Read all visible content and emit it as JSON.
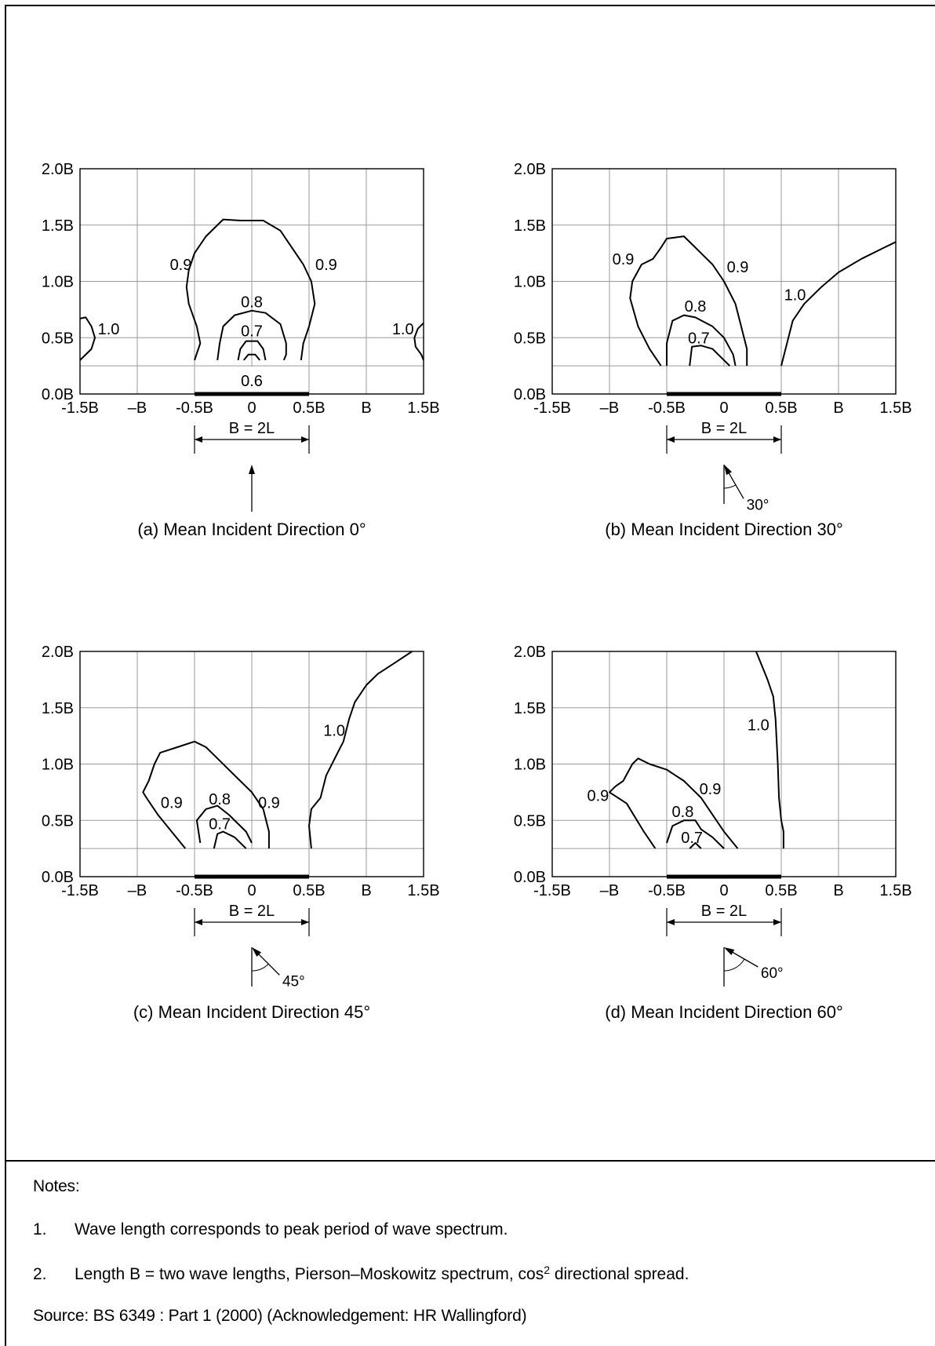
{
  "notes": {
    "heading": "Notes:",
    "items": [
      {
        "num": "1.",
        "text": "Wave length corresponds to peak period of wave spectrum."
      },
      {
        "num": "2.",
        "text_before": "Length B = two wave lengths, Pierson–Moskowitz spectrum, cos",
        "sup": "2",
        "text_after": " directional spread."
      }
    ],
    "source": "Source: BS 6349 : Part 1 (2000) (Acknowledgement: HR Wallingford)"
  },
  "chart_data": [
    {
      "type": "line",
      "title": "(a) Mean Incident Direction 0°",
      "x_tick_labels": [
        "-1.5B",
        "–B",
        "-0.5B",
        "0",
        "0.5B",
        "B",
        "1.5B"
      ],
      "y_tick_labels": [
        "0.0B",
        "0.5B",
        "1.0B",
        "1.5B",
        "2.0B"
      ],
      "xlim": [
        -1.5,
        1.5
      ],
      "ylim": [
        0,
        2.0
      ],
      "grid": true,
      "gap_label": "B = 2L",
      "direction_deg": 0,
      "series": [
        {
          "name": "0.9",
          "x": [
            -0.5,
            -0.45,
            -0.48,
            -0.55,
            -0.57,
            -0.55,
            -0.5,
            -0.4,
            -0.25,
            -0.1,
            0.1,
            0.25,
            0.35,
            0.45,
            0.52,
            0.55,
            0.5,
            0.45,
            0.43
          ],
          "y": [
            0.3,
            0.45,
            0.6,
            0.8,
            0.95,
            1.1,
            1.25,
            1.4,
            1.55,
            1.54,
            1.54,
            1.45,
            1.3,
            1.15,
            1.0,
            0.8,
            0.6,
            0.45,
            0.3
          ]
        },
        {
          "name": "0.8",
          "x": [
            -0.3,
            -0.28,
            -0.25,
            -0.15,
            0.0,
            0.12,
            0.25,
            0.3,
            0.3,
            0.28
          ],
          "y": [
            0.3,
            0.45,
            0.6,
            0.7,
            0.74,
            0.72,
            0.62,
            0.45,
            0.35,
            0.3
          ]
        },
        {
          "name": "0.7",
          "x": [
            -0.12,
            -0.1,
            -0.05,
            0.05,
            0.1,
            0.12
          ],
          "y": [
            0.3,
            0.4,
            0.47,
            0.47,
            0.4,
            0.3
          ]
        },
        {
          "name": "0.6",
          "x": [
            -0.07,
            -0.03,
            0.03,
            0.07
          ],
          "y": [
            0.3,
            0.35,
            0.35,
            0.3
          ]
        },
        {
          "name": "1.0",
          "x": [
            -1.5,
            -1.4,
            -1.37,
            -1.4,
            -1.45,
            -1.5
          ],
          "y": [
            0.3,
            0.4,
            0.5,
            0.6,
            0.68,
            0.67
          ]
        },
        {
          "name": "1.0",
          "x": [
            1.5,
            1.45,
            1.42,
            1.43,
            1.48,
            1.5
          ],
          "y": [
            0.63,
            0.58,
            0.5,
            0.42,
            0.35,
            0.3
          ]
        }
      ],
      "annotations": [
        "0.9",
        "0.9",
        "0.8",
        "0.7",
        "0.6",
        "1.0",
        "1.0"
      ]
    },
    {
      "type": "line",
      "title": "(b) Mean Incident Direction 30°",
      "x_tick_labels": [
        "-1.5B",
        "–B",
        "-0.5B",
        "0",
        "0.5B",
        "B",
        "1.5B"
      ],
      "y_tick_labels": [
        "0.0B",
        "0.5B",
        "1.0B",
        "1.5B",
        "2.0B"
      ],
      "xlim": [
        -1.5,
        1.5
      ],
      "ylim": [
        0,
        2.0
      ],
      "grid": true,
      "gap_label": "B = 2L",
      "direction_deg": 30,
      "direction_label": "30°",
      "series": [
        {
          "name": "0.9",
          "x": [
            -0.55,
            -0.65,
            -0.75,
            -0.82,
            -0.8,
            -0.72,
            -0.62,
            -0.55,
            -0.5,
            -0.35,
            -0.25,
            -0.1,
            0.0,
            0.1,
            0.15,
            0.2,
            0.2
          ],
          "y": [
            0.25,
            0.4,
            0.6,
            0.85,
            1.0,
            1.15,
            1.2,
            1.3,
            1.38,
            1.4,
            1.3,
            1.15,
            1.0,
            0.8,
            0.6,
            0.4,
            0.25
          ]
        },
        {
          "name": "0.8",
          "x": [
            -0.5,
            -0.5,
            -0.45,
            -0.35,
            -0.25,
            -0.1,
            0.0,
            0.08,
            0.1
          ],
          "y": [
            0.25,
            0.45,
            0.65,
            0.7,
            0.68,
            0.6,
            0.5,
            0.35,
            0.25
          ]
        },
        {
          "name": "0.7",
          "x": [
            -0.3,
            -0.28,
            -0.2,
            -0.1,
            -0.05,
            0.05
          ],
          "y": [
            0.25,
            0.42,
            0.43,
            0.4,
            0.35,
            0.25
          ]
        },
        {
          "name": "1.0",
          "x": [
            0.5,
            0.6,
            0.7,
            0.85,
            1.0,
            1.2,
            1.4,
            1.5
          ],
          "y": [
            0.25,
            0.65,
            0.8,
            0.95,
            1.08,
            1.2,
            1.3,
            1.35
          ]
        }
      ],
      "annotations": [
        "0.9",
        "0.9",
        "0.8",
        "0.7",
        "1.0"
      ]
    },
    {
      "type": "line",
      "title": "(c) Mean Incident Direction 45°",
      "x_tick_labels": [
        "-1.5B",
        "–B",
        "-0.5B",
        "0",
        "0.5B",
        "B",
        "1.5B"
      ],
      "y_tick_labels": [
        "0.0B",
        "0.5B",
        "1.0B",
        "1.5B",
        "2.0B"
      ],
      "xlim": [
        -1.5,
        1.5
      ],
      "ylim": [
        0,
        2.0
      ],
      "grid": true,
      "gap_label": "B = 2L",
      "direction_deg": 45,
      "direction_label": "45°",
      "series": [
        {
          "name": "0.9",
          "x": [
            -0.58,
            -0.7,
            -0.82,
            -0.92,
            -0.95,
            -0.9,
            -0.85,
            -0.8,
            -0.65,
            -0.5,
            -0.4,
            -0.3,
            -0.15,
            0.0,
            0.1,
            0.15,
            0.15
          ],
          "y": [
            0.25,
            0.4,
            0.55,
            0.7,
            0.75,
            0.85,
            1.0,
            1.1,
            1.15,
            1.2,
            1.15,
            1.05,
            0.9,
            0.75,
            0.6,
            0.4,
            0.25
          ]
        },
        {
          "name": "0.8",
          "x": [
            -0.45,
            -0.48,
            -0.4,
            -0.3,
            -0.2,
            -0.05,
            0.0
          ],
          "y": [
            0.3,
            0.5,
            0.6,
            0.63,
            0.55,
            0.4,
            0.3
          ]
        },
        {
          "name": "0.7",
          "x": [
            -0.33,
            -0.3,
            -0.25,
            -0.15,
            -0.05
          ],
          "y": [
            0.25,
            0.38,
            0.4,
            0.35,
            0.25
          ]
        },
        {
          "name": "1.0",
          "x": [
            0.52,
            0.5,
            0.52,
            0.6,
            0.65,
            0.75,
            0.8,
            0.85,
            0.9,
            1.0,
            1.1,
            1.25,
            1.4
          ],
          "y": [
            0.25,
            0.45,
            0.6,
            0.7,
            0.9,
            1.1,
            1.2,
            1.4,
            1.55,
            1.7,
            1.8,
            1.9,
            2.0
          ]
        }
      ],
      "annotations": [
        "0.9",
        "0.8",
        "0.9",
        "0.7",
        "1.0"
      ]
    },
    {
      "type": "line",
      "title": "(d) Mean Incident Direction 60°",
      "x_tick_labels": [
        "-1.5B",
        "–B",
        "-0.5B",
        "0",
        "0.5B",
        "B",
        "1.5B"
      ],
      "y_tick_labels": [
        "0.0B",
        "0.5B",
        "1.0B",
        "1.5B",
        "2.0B"
      ],
      "xlim": [
        -1.5,
        1.5
      ],
      "ylim": [
        0,
        2.0
      ],
      "grid": true,
      "gap_label": "B = 2L",
      "direction_deg": 60,
      "direction_label": "60°",
      "series": [
        {
          "name": "0.9",
          "x": [
            -0.6,
            -0.7,
            -0.85,
            -1.0,
            -0.95,
            -0.88,
            -0.8,
            -0.75,
            -0.65,
            -0.5,
            -0.35,
            -0.2,
            -0.1,
            0.0,
            0.12
          ],
          "y": [
            0.25,
            0.4,
            0.65,
            0.75,
            0.8,
            0.85,
            1.0,
            1.05,
            1.0,
            0.95,
            0.85,
            0.7,
            0.55,
            0.4,
            0.25
          ]
        },
        {
          "name": "0.8",
          "x": [
            -0.5,
            -0.45,
            -0.35,
            -0.25,
            -0.2,
            -0.1,
            0.0
          ],
          "y": [
            0.3,
            0.45,
            0.5,
            0.5,
            0.42,
            0.35,
            0.25
          ]
        },
        {
          "name": "0.7",
          "x": [
            -0.3,
            -0.25,
            -0.2
          ],
          "y": [
            0.25,
            0.3,
            0.25
          ]
        },
        {
          "name": "1.0",
          "x": [
            0.28,
            0.38,
            0.43,
            0.45,
            0.47,
            0.48,
            0.5,
            0.52,
            0.52
          ],
          "y": [
            2.0,
            1.75,
            1.6,
            1.4,
            1.0,
            0.7,
            0.5,
            0.4,
            0.25
          ]
        }
      ],
      "annotations": [
        "0.9",
        "0.9",
        "0.8",
        "0.7",
        "1.0"
      ]
    }
  ]
}
